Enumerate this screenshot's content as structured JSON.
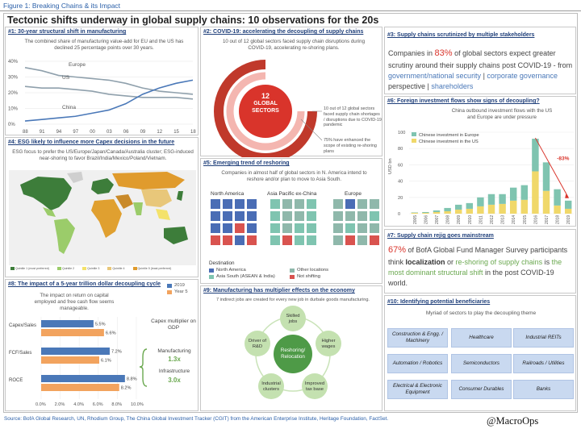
{
  "figure_caption": "Figure 1: Breaking Chains & its Impact",
  "title": "Tectonic shifts underway in global supply chains: 10 observations for the 20s",
  "colors": {
    "blue": "#4a78b8",
    "red": "#d9342b",
    "green": "#6aa84f",
    "gray": "#8fa0ac",
    "orange": "#f2a35e",
    "teal": "#7fc4b0",
    "yellow": "#f0d86a"
  },
  "panel1": {
    "title": "#1: 30-year structural shift in manufacturing",
    "text": "The combined share of manufacturing value-add for EU and the US has declined  25 percentage points over 30 years.",
    "series_labels": [
      "Europe",
      "US",
      "China"
    ],
    "y_ticks": [
      "40%",
      "30%",
      "20%",
      "10%",
      "0%"
    ],
    "x_ticks": [
      "88",
      "91",
      "94",
      "97",
      "00",
      "03",
      "06",
      "09",
      "12",
      "15",
      "18"
    ]
  },
  "panel2": {
    "title": "#2: COVID-19: accelerating the decoupling of supply chains",
    "text": "10 out of 12 global sectors faced supply chain disruptions during COVID-19, accelerating re-shoring plans.",
    "center_number": "12",
    "center_label_1": "GLOBAL",
    "center_label_2": "SECTORS",
    "note1": "10 out of 12 global sectors faced supply chain shortages / disruptions due to COVID-19 pandemic",
    "note2": "75% have enhanced the scope of existing re-shoring plans"
  },
  "panel3": {
    "title": "#3: Supply chains scrutinized by multiple stakeholders",
    "t1": "Companies in ",
    "pct": "83%",
    "t2": " of global sectors expect greater scrutiny around their supply chains post COVID-19 - from ",
    "l1": "government/national security",
    "sep": " | ",
    "l2": "corporate governance",
    "t3": " perspective | ",
    "l3": "shareholders"
  },
  "panel4": {
    "title": "#4: ESG likely to influence more Capex decisions in the future",
    "text": "ESG focus to prefer the US/Europe/Japan/Canada/Australia cluster; ESG-induced near-shoring to favor Brazil/India/Mexico/Poland/Vietnam.",
    "legend": [
      "Quintile 1 (most preferred)",
      "Quintile 2",
      "Quintile 3",
      "Quintile 4",
      "Quintile 5 (least preferred)"
    ]
  },
  "panel5": {
    "title": "#5: Emerging trend of reshoring",
    "text": "Companies in almost half of global sectors in N. America intend to reshore and/or plan to move to Asia South.",
    "regions": [
      "North America",
      "Asia Pacific ex-China",
      "Europe"
    ],
    "legend_title": "Destination",
    "legend": [
      "North America",
      "Other locations",
      "Asia South (ASEAN & India)",
      "Not shifting"
    ]
  },
  "panel6": {
    "title": "#6: Foreign investment flows show signs of decoupling?",
    "text": "China outbound investment flows with the US and Europe are under pressure",
    "ylabel": "USD bn",
    "y_ticks": [
      "100",
      "80",
      "60",
      "40",
      "20",
      "0"
    ],
    "legend": [
      "Chinese investment in Europe",
      "Chinese investment in the US"
    ],
    "annotation": "-83%"
  },
  "panel7": {
    "title": "#7: Supply chain rejig goes mainstream",
    "pct": "67%",
    "t1": " of BofA Global Fund Manager Survey participants think ",
    "b1": "localization",
    "t2": " or ",
    "g1": "re-shoring of supply chains",
    "t3": " is ",
    "g2": "the most dominant structural shift",
    "t4": " in the post COVID-19 world."
  },
  "panel8": {
    "title": "#8: The impact of a 5-year trillion dollar decoupling cycle",
    "text": "The impact on return on capital employed and free cash flow seems manageable.",
    "legend": [
      "2019",
      "Year 5"
    ],
    "x_ticks": [
      "0.0%",
      "2.0%",
      "4.0%",
      "6.0%",
      "8.0%",
      "10.0%"
    ],
    "capex_title": "Capex multiplier on GDP",
    "mfg_label": "Manufacturing",
    "mfg_value": "1.3x",
    "infra_label": "Infrastructure",
    "infra_value": "3.0x"
  },
  "panel9": {
    "title": "#9: Manufacturing has multiplier effects on the economy",
    "text": "7 indirect jobs are created for every new job in durbale goods manufacturing.",
    "center": "Reshoring/ Relocation",
    "nodes": [
      "Skilled jobs",
      "Higher wages",
      "Improved tax base",
      "Industrial clusters",
      "Driver of R&D"
    ]
  },
  "panel10": {
    "title": "#10: Identifying potential beneficiaries",
    "text": "Myriad of sectors to play the decoupling theme",
    "sectors": [
      "Construction & Engg. / Machinery",
      "Healthcare",
      "Industrial REITs",
      "Automation / Robotics",
      "Semiconductors",
      "Railroads / Utilities",
      "Electrical & Electronic Equipment",
      "Consumer Durables",
      "Banks"
    ]
  },
  "source": "Source: BofA Global Research, UN, Rhodium Group, The China Global Investment Tracker (CGIT) from the American Enterprise Institute, Heritage Foundation, FactSet.",
  "brand": "@MacroOps",
  "chart_data": [
    {
      "type": "line",
      "title": "",
      "x": [
        1988,
        1991,
        1994,
        1997,
        2000,
        2003,
        2006,
        2009,
        2012,
        2015,
        2018
      ],
      "series": [
        {
          "name": "Europe",
          "values": [
            36,
            34,
            31,
            30,
            29,
            28,
            26,
            23,
            21,
            20,
            19
          ]
        },
        {
          "name": "US",
          "values": [
            24,
            23,
            23,
            22,
            21,
            19,
            18,
            17,
            17,
            17,
            16
          ]
        },
        {
          "name": "China",
          "values": [
            2,
            3,
            4,
            5,
            7,
            9,
            13,
            19,
            23,
            26,
            28
          ]
        }
      ],
      "ylim": [
        0,
        40
      ]
    },
    {
      "type": "bar",
      "title": "",
      "ylabel": "USD bn",
      "categories": [
        "2005",
        "2006",
        "2007",
        "2008",
        "2009",
        "2010",
        "2011",
        "2012",
        "2013",
        "2014",
        "2015",
        "2016",
        "2017",
        "2018",
        "2019"
      ],
      "series": [
        {
          "name": "Chinese investment in Europe",
          "values": [
            0.5,
            1,
            2,
            4,
            6,
            7,
            11,
            13,
            12,
            16,
            18,
            40,
            35,
            20,
            10
          ]
        },
        {
          "name": "Chinese investment in the US",
          "values": [
            1,
            1,
            2,
            3,
            5,
            6,
            9,
            11,
            12,
            16,
            17,
            52,
            28,
            10,
            6
          ]
        }
      ],
      "ylim": [
        0,
        100
      ]
    },
    {
      "type": "bar",
      "title": "",
      "categories": [
        "Capex/Sales",
        "FCF/Sales",
        "ROCE"
      ],
      "series": [
        {
          "name": "2019",
          "values": [
            5.5,
            7.2,
            8.8
          ]
        },
        {
          "name": "Year 5",
          "values": [
            6.6,
            6.1,
            8.2
          ]
        }
      ],
      "xlim": [
        0,
        10
      ]
    }
  ]
}
